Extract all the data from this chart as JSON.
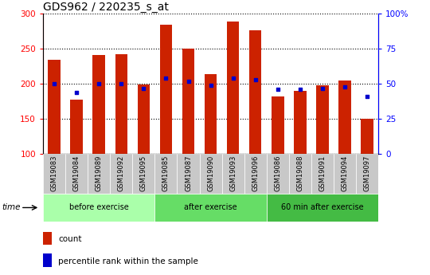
{
  "title": "GDS962 / 220235_s_at",
  "categories": [
    "GSM19083",
    "GSM19084",
    "GSM19089",
    "GSM19092",
    "GSM19095",
    "GSM19085",
    "GSM19087",
    "GSM19090",
    "GSM19093",
    "GSM19096",
    "GSM19086",
    "GSM19088",
    "GSM19091",
    "GSM19094",
    "GSM19097"
  ],
  "bar_values": [
    234,
    177,
    241,
    242,
    199,
    284,
    250,
    214,
    289,
    276,
    182,
    190,
    198,
    205,
    150
  ],
  "percentile_values": [
    50,
    44,
    50,
    50,
    47,
    54,
    52,
    49,
    54,
    53,
    46,
    46,
    47,
    48,
    41
  ],
  "bar_color": "#cc2200",
  "dot_color": "#0000cc",
  "ylim_left": [
    100,
    300
  ],
  "ylim_right": [
    0,
    100
  ],
  "yticks_left": [
    100,
    150,
    200,
    250,
    300
  ],
  "yticks_right": [
    0,
    25,
    50,
    75,
    100
  ],
  "groups": [
    {
      "label": "before exercise",
      "start": 0,
      "end": 5,
      "color": "#aaffaa"
    },
    {
      "label": "after exercise",
      "start": 5,
      "end": 10,
      "color": "#66dd66"
    },
    {
      "label": "60 min after exercise",
      "start": 10,
      "end": 15,
      "color": "#44bb44"
    }
  ],
  "bar_width": 0.55,
  "background_color": "#ffffff",
  "plot_bg_color": "#ffffff",
  "title_fontsize": 10,
  "time_label": "time",
  "legend_items": [
    "count",
    "percentile rank within the sample"
  ]
}
